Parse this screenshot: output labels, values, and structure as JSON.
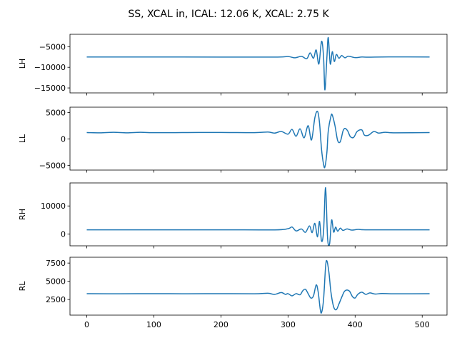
{
  "chart_data": {
    "type": "line",
    "title": "SS, XCAL in, ICAL: 12.06 K, XCAL: 2.75 K",
    "line_color": "#1f77b4",
    "sharex": true,
    "xlim": [
      -25,
      537
    ],
    "xticks": [
      0,
      100,
      200,
      300,
      400,
      500
    ],
    "xtick_labels": [
      "0",
      "100",
      "200",
      "300",
      "400",
      "500"
    ],
    "n_samples": 512,
    "panels": [
      {
        "ylabel": "LH",
        "ylim": [
          -16200,
          -2000
        ],
        "yticks": [
          -5000,
          -10000,
          -15000
        ],
        "ytick_labels": [
          "−5000",
          "−10000",
          "−15000"
        ],
        "baseline": -7500,
        "points": [
          [
            0,
            -7500
          ],
          [
            100,
            -7500
          ],
          [
            200,
            -7510
          ],
          [
            280,
            -7520
          ],
          [
            300,
            -7400
          ],
          [
            310,
            -7700
          ],
          [
            320,
            -7350
          ],
          [
            328,
            -7900
          ],
          [
            333,
            -6500
          ],
          [
            338,
            -7800
          ],
          [
            342,
            -5800
          ],
          [
            346,
            -9200
          ],
          [
            350,
            -3700
          ],
          [
            353,
            -7500
          ],
          [
            355,
            -15500
          ],
          [
            358,
            -7500
          ],
          [
            360,
            -2800
          ],
          [
            363,
            -9200
          ],
          [
            366,
            -6200
          ],
          [
            369,
            -8600
          ],
          [
            372,
            -6900
          ],
          [
            376,
            -7800
          ],
          [
            380,
            -7150
          ],
          [
            385,
            -7700
          ],
          [
            390,
            -7300
          ],
          [
            400,
            -7650
          ],
          [
            410,
            -7500
          ],
          [
            420,
            -7550
          ],
          [
            450,
            -7480
          ],
          [
            511,
            -7500
          ]
        ]
      },
      {
        "ylabel": "LL",
        "ylim": [
          -5900,
          6000
        ],
        "yticks": [
          5000,
          0,
          -5000
        ],
        "ytick_labels": [
          "5000",
          "0",
          "−5000"
        ],
        "baseline": 1200,
        "points": [
          [
            0,
            1200
          ],
          [
            20,
            1150
          ],
          [
            40,
            1250
          ],
          [
            60,
            1150
          ],
          [
            80,
            1250
          ],
          [
            100,
            1180
          ],
          [
            150,
            1200
          ],
          [
            200,
            1220
          ],
          [
            250,
            1180
          ],
          [
            270,
            1300
          ],
          [
            280,
            1100
          ],
          [
            290,
            1400
          ],
          [
            300,
            900
          ],
          [
            306,
            1800
          ],
          [
            312,
            500
          ],
          [
            318,
            1900
          ],
          [
            324,
            200
          ],
          [
            330,
            2500
          ],
          [
            335,
            -200
          ],
          [
            340,
            4000
          ],
          [
            344,
            5200
          ],
          [
            347,
            3000
          ],
          [
            350,
            -2000
          ],
          [
            353,
            -4800
          ],
          [
            355,
            -5300
          ],
          [
            358,
            -2500
          ],
          [
            360,
            1500
          ],
          [
            364,
            4300
          ],
          [
            366,
            4500
          ],
          [
            370,
            2500
          ],
          [
            374,
            -300
          ],
          [
            378,
            -500
          ],
          [
            382,
            1500
          ],
          [
            385,
            2000
          ],
          [
            389,
            1500
          ],
          [
            393,
            400
          ],
          [
            398,
            300
          ],
          [
            403,
            1400
          ],
          [
            410,
            1700
          ],
          [
            414,
            700
          ],
          [
            420,
            700
          ],
          [
            428,
            1400
          ],
          [
            435,
            1100
          ],
          [
            445,
            1250
          ],
          [
            460,
            1150
          ],
          [
            511,
            1200
          ]
        ]
      },
      {
        "ylabel": "RH",
        "ylim": [
          -4200,
          18200
        ],
        "yticks": [
          10000,
          0
        ],
        "ytick_labels": [
          "10000",
          "0"
        ],
        "baseline": 1500,
        "points": [
          [
            0,
            1500
          ],
          [
            100,
            1500
          ],
          [
            200,
            1510
          ],
          [
            280,
            1480
          ],
          [
            300,
            1900
          ],
          [
            306,
            2500
          ],
          [
            312,
            1100
          ],
          [
            320,
            1800
          ],
          [
            326,
            600
          ],
          [
            332,
            2900
          ],
          [
            336,
            500
          ],
          [
            340,
            3800
          ],
          [
            344,
            -1000
          ],
          [
            347,
            4500
          ],
          [
            350,
            -2500
          ],
          [
            353,
            1000
          ],
          [
            356,
            16500
          ],
          [
            359,
            -1500
          ],
          [
            362,
            -3500
          ],
          [
            365,
            5000
          ],
          [
            368,
            700
          ],
          [
            371,
            2500
          ],
          [
            374,
            1000
          ],
          [
            378,
            2100
          ],
          [
            382,
            1300
          ],
          [
            388,
            1800
          ],
          [
            395,
            1400
          ],
          [
            405,
            1650
          ],
          [
            420,
            1500
          ],
          [
            511,
            1500
          ]
        ]
      },
      {
        "ylabel": "RL",
        "ylim": [
          350,
          8300
        ],
        "yticks": [
          7500,
          5000,
          2500
        ],
        "ytick_labels": [
          "7500",
          "5000",
          "2500"
        ],
        "baseline": 3300,
        "points": [
          [
            0,
            3300
          ],
          [
            50,
            3280
          ],
          [
            100,
            3300
          ],
          [
            150,
            3280
          ],
          [
            200,
            3300
          ],
          [
            250,
            3280
          ],
          [
            270,
            3350
          ],
          [
            280,
            3200
          ],
          [
            290,
            3450
          ],
          [
            296,
            3200
          ],
          [
            300,
            3300
          ],
          [
            306,
            3000
          ],
          [
            312,
            3300
          ],
          [
            318,
            3150
          ],
          [
            322,
            3700
          ],
          [
            326,
            3900
          ],
          [
            330,
            3300
          ],
          [
            334,
            2700
          ],
          [
            338,
            3000
          ],
          [
            342,
            4500
          ],
          [
            345,
            3500
          ],
          [
            348,
            1200
          ],
          [
            350,
            700
          ],
          [
            353,
            2500
          ],
          [
            356,
            7000
          ],
          [
            358,
            7800
          ],
          [
            361,
            6200
          ],
          [
            364,
            3500
          ],
          [
            368,
            1500
          ],
          [
            372,
            1100
          ],
          [
            376,
            1900
          ],
          [
            380,
            2800
          ],
          [
            384,
            3600
          ],
          [
            388,
            3800
          ],
          [
            392,
            3600
          ],
          [
            396,
            2900
          ],
          [
            400,
            2700
          ],
          [
            404,
            3200
          ],
          [
            410,
            3500
          ],
          [
            416,
            3200
          ],
          [
            422,
            3400
          ],
          [
            430,
            3250
          ],
          [
            440,
            3320
          ],
          [
            460,
            3280
          ],
          [
            511,
            3300
          ]
        ]
      }
    ]
  }
}
